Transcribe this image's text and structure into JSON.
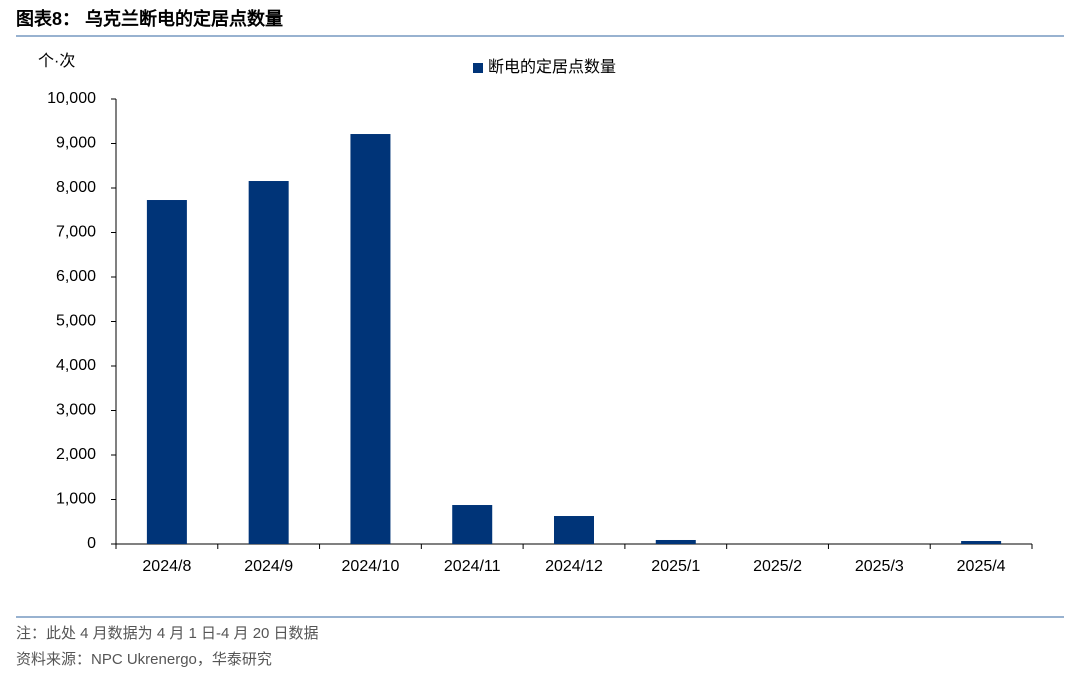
{
  "chart_data": {
    "type": "bar",
    "title": "图表8： 乌克兰断电的定居点数量",
    "y_label": "个·次",
    "categories": [
      "2024/8",
      "2024/9",
      "2024/10",
      "2024/11",
      "2024/12",
      "2025/1",
      "2025/2",
      "2025/3",
      "2025/4"
    ],
    "series": [
      {
        "name": "断电的定居点数量",
        "color": "#003478",
        "values": [
          7730,
          8157,
          9213,
          876,
          629,
          90,
          0,
          0,
          67
        ]
      }
    ],
    "ylim": [
      0,
      10000
    ],
    "yticks": [
      0,
      {
        "value": 1000,
        "label": "1,000"
      },
      {
        "value": 2000,
        "label": "2,000"
      },
      {
        "value": 3000,
        "label": "3,000"
      },
      {
        "value": 4000,
        "label": "4,000"
      },
      {
        "value": 5000,
        "label": "5,000"
      },
      {
        "value": 6000,
        "label": "6,000"
      },
      {
        "value": 7000,
        "label": "7,000"
      },
      {
        "value": 8000,
        "label": "8,000"
      },
      {
        "value": 9000,
        "label": "9,000"
      },
      {
        "value": 10000,
        "label": "10,000"
      }
    ],
    "grid": false,
    "legend": "top",
    "notes": [
      "注：此处 4 月数据为 4 月 1 日-4 月 20 日数据",
      "资料来源：NPC Ukrenergo，华泰研究"
    ]
  }
}
